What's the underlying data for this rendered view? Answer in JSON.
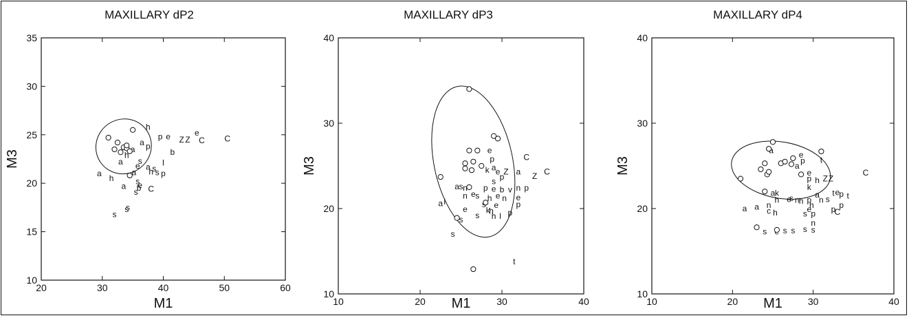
{
  "chart_data": [
    {
      "type": "scatter",
      "title": "MAXILLARY dP2",
      "xlabel": "M1",
      "ylabel": "M3",
      "xlim": [
        20,
        60
      ],
      "ylim": [
        10,
        35
      ],
      "xticks": [
        20,
        30,
        40,
        50,
        60
      ],
      "yticks": [
        10,
        15,
        20,
        25,
        30,
        35
      ],
      "grid": false,
      "circle_points": [
        [
          31,
          24.7
        ],
        [
          32,
          23.5
        ],
        [
          32.5,
          24.2
        ],
        [
          33,
          23.2
        ],
        [
          33.5,
          23.7
        ],
        [
          34,
          23.6
        ],
        [
          34.5,
          23.3
        ],
        [
          35,
          25.5
        ],
        [
          34.5,
          20.8
        ],
        [
          34,
          23.9
        ]
      ],
      "ellipse": {
        "cx": 33.5,
        "cy": 23.8,
        "rx": 4.6,
        "ry": 2.8,
        "rotation": 35
      },
      "letter_points": [
        {
          "label": "h",
          "x": 37.5,
          "y": 25.8
        },
        {
          "label": "a",
          "x": 36.5,
          "y": 24.2
        },
        {
          "label": "a",
          "x": 35,
          "y": 23.5
        },
        {
          "label": "p",
          "x": 37.5,
          "y": 23.8
        },
        {
          "label": "h",
          "x": 34,
          "y": 22.9
        },
        {
          "label": "a",
          "x": 33,
          "y": 22.2
        },
        {
          "label": "s",
          "x": 36.2,
          "y": 22.3
        },
        {
          "label": "e",
          "x": 35.8,
          "y": 21.8
        },
        {
          "label": "a",
          "x": 37.5,
          "y": 21.7
        },
        {
          "label": "h",
          "x": 38,
          "y": 21.2
        },
        {
          "label": "s",
          "x": 38.5,
          "y": 21.5
        },
        {
          "label": "s",
          "x": 39,
          "y": 21.1
        },
        {
          "label": "p",
          "x": 40,
          "y": 21.0
        },
        {
          "label": "l",
          "x": 40,
          "y": 22.1
        },
        {
          "label": "a",
          "x": 29.5,
          "y": 21.0
        },
        {
          "label": "h",
          "x": 31.5,
          "y": 20.5
        },
        {
          "label": "a",
          "x": 35.2,
          "y": 21.1
        },
        {
          "label": "s",
          "x": 35.8,
          "y": 20.2
        },
        {
          "label": "a",
          "x": 33.5,
          "y": 19.7
        },
        {
          "label": "e",
          "x": 36.2,
          "y": 19.8
        },
        {
          "label": "b",
          "x": 36,
          "y": 19.5
        },
        {
          "label": "C",
          "x": 38,
          "y": 19.4
        },
        {
          "label": "s",
          "x": 35.5,
          "y": 19.1
        },
        {
          "label": "p",
          "x": 39.5,
          "y": 24.8
        },
        {
          "label": "e",
          "x": 40.8,
          "y": 24.8
        },
        {
          "label": "b",
          "x": 41.5,
          "y": 23.2
        },
        {
          "label": "Z",
          "x": 43,
          "y": 24.5
        },
        {
          "label": "Z",
          "x": 44,
          "y": 24.5
        },
        {
          "label": "e",
          "x": 45.5,
          "y": 25.2
        },
        {
          "label": "C",
          "x": 46.3,
          "y": 24.4
        },
        {
          "label": "C",
          "x": 50.5,
          "y": 24.6
        },
        {
          "label": "s",
          "x": 32,
          "y": 16.8
        },
        {
          "label": "s",
          "x": 34,
          "y": 17.3
        },
        {
          "label": "s",
          "x": 34.2,
          "y": 17.5
        }
      ]
    },
    {
      "type": "scatter",
      "title": "MAXILLARY dP3",
      "xlabel": "M1",
      "ylabel": "M3",
      "xlim": [
        10,
        40
      ],
      "ylim": [
        10,
        40
      ],
      "xticks": [
        10,
        20,
        30,
        40
      ],
      "yticks": [
        10,
        20,
        30,
        40
      ],
      "grid": false,
      "circle_points": [
        [
          26,
          34
        ],
        [
          29,
          28.5
        ],
        [
          29.5,
          28.2
        ],
        [
          26,
          26.8
        ],
        [
          27,
          26.8
        ],
        [
          25.5,
          25.3
        ],
        [
          26.5,
          25.5
        ],
        [
          25.5,
          24.7
        ],
        [
          26.3,
          24.5
        ],
        [
          22.5,
          23.7
        ],
        [
          27.5,
          25
        ],
        [
          26,
          22.5
        ],
        [
          28,
          20.7
        ],
        [
          24.5,
          18.9
        ],
        [
          26.5,
          12.9
        ]
      ],
      "ellipse": {
        "cx": 26.5,
        "cy": 25.5,
        "rx": 4.8,
        "ry": 9.0,
        "rotation": 12
      },
      "letter_points": [
        {
          "label": "e",
          "x": 28.5,
          "y": 26.8
        },
        {
          "label": "p",
          "x": 28.8,
          "y": 25.8
        },
        {
          "label": "k",
          "x": 28.2,
          "y": 24.5
        },
        {
          "label": "a",
          "x": 29,
          "y": 24.8
        },
        {
          "label": "e",
          "x": 29.5,
          "y": 24.3
        },
        {
          "label": "Z",
          "x": 30.5,
          "y": 24.3
        },
        {
          "label": "s",
          "x": 29,
          "y": 23.2
        },
        {
          "label": "p",
          "x": 30,
          "y": 23.7
        },
        {
          "label": "a",
          "x": 32,
          "y": 24.3
        },
        {
          "label": "C",
          "x": 33,
          "y": 26
        },
        {
          "label": "Z",
          "x": 34,
          "y": 23.8
        },
        {
          "label": "C",
          "x": 35.5,
          "y": 24.3
        },
        {
          "label": "a",
          "x": 24.5,
          "y": 22.6
        },
        {
          "label": "s",
          "x": 25,
          "y": 22.6
        },
        {
          "label": "n",
          "x": 25.5,
          "y": 22.4
        },
        {
          "label": "p",
          "x": 28,
          "y": 22.4
        },
        {
          "label": "e",
          "x": 29,
          "y": 22.3
        },
        {
          "label": "b",
          "x": 30,
          "y": 22.2
        },
        {
          "label": "v",
          "x": 31,
          "y": 22.2
        },
        {
          "label": "n",
          "x": 32,
          "y": 22.4
        },
        {
          "label": "p",
          "x": 33,
          "y": 22.4
        },
        {
          "label": "a",
          "x": 22.5,
          "y": 20.6
        },
        {
          "label": "l",
          "x": 23,
          "y": 20.8
        },
        {
          "label": "n",
          "x": 25.5,
          "y": 21.5
        },
        {
          "label": "e",
          "x": 26.5,
          "y": 21.7
        },
        {
          "label": "s",
          "x": 27,
          "y": 21.5
        },
        {
          "label": "h",
          "x": 28.5,
          "y": 21.2
        },
        {
          "label": "e",
          "x": 29.5,
          "y": 21.5
        },
        {
          "label": "e",
          "x": 32,
          "y": 21.3
        },
        {
          "label": "n",
          "x": 30.3,
          "y": 21.2
        },
        {
          "label": "s",
          "x": 27.8,
          "y": 20.5
        },
        {
          "label": "e",
          "x": 29.3,
          "y": 20.4
        },
        {
          "label": "p",
          "x": 32,
          "y": 20.5
        },
        {
          "label": "k",
          "x": 28.3,
          "y": 19.8
        },
        {
          "label": "h",
          "x": 28.7,
          "y": 19.7
        },
        {
          "label": "e",
          "x": 25.5,
          "y": 19.9
        },
        {
          "label": "s",
          "x": 27,
          "y": 19.2
        },
        {
          "label": "h",
          "x": 29,
          "y": 19.1
        },
        {
          "label": "l",
          "x": 29.8,
          "y": 19.1
        },
        {
          "label": "p",
          "x": 31,
          "y": 19.5
        },
        {
          "label": "s",
          "x": 25,
          "y": 18.7
        },
        {
          "label": "s",
          "x": 24,
          "y": 17
        },
        {
          "label": "t",
          "x": 31.5,
          "y": 13.8
        }
      ]
    },
    {
      "type": "scatter",
      "title": "MAXILLARY dP4",
      "xlabel": "M1",
      "ylabel": "M3",
      "xlim": [
        10,
        40
      ],
      "ylim": [
        10,
        40
      ],
      "xticks": [
        10,
        20,
        30,
        40
      ],
      "yticks": [
        10,
        20,
        30,
        40
      ],
      "grid": false,
      "circle_points": [
        [
          25,
          27.8
        ],
        [
          24.5,
          27
        ],
        [
          24,
          25.3
        ],
        [
          26,
          25.3
        ],
        [
          27.5,
          25.9
        ],
        [
          26.5,
          25.5
        ],
        [
          27.3,
          25.2
        ],
        [
          31,
          26.7
        ],
        [
          21,
          23.5
        ],
        [
          23.5,
          24.6
        ],
        [
          24.3,
          24
        ],
        [
          24.5,
          24.3
        ],
        [
          28.5,
          24
        ],
        [
          24,
          22
        ],
        [
          23,
          17.8
        ],
        [
          25.5,
          17.5
        ]
      ],
      "ellipse": {
        "cx": 26,
        "cy": 24.5,
        "rx": 6.2,
        "ry": 3.3,
        "rotation": -10
      },
      "letter_points": [
        {
          "label": "a",
          "x": 24.8,
          "y": 26.8
        },
        {
          "label": "e",
          "x": 28.5,
          "y": 26.3
        },
        {
          "label": "p",
          "x": 28.7,
          "y": 25.6
        },
        {
          "label": "a",
          "x": 28,
          "y": 25
        },
        {
          "label": "t",
          "x": 31,
          "y": 25.7
        },
        {
          "label": "e",
          "x": 29.5,
          "y": 24.2
        },
        {
          "label": "p",
          "x": 29.5,
          "y": 23.5
        },
        {
          "label": "h",
          "x": 30.5,
          "y": 23.3
        },
        {
          "label": "Z",
          "x": 31.5,
          "y": 23.5
        },
        {
          "label": "Z",
          "x": 32.2,
          "y": 23.5
        },
        {
          "label": "k",
          "x": 29.5,
          "y": 22.5
        },
        {
          "label": "C",
          "x": 36.5,
          "y": 24.2
        },
        {
          "label": "a",
          "x": 25,
          "y": 21.8
        },
        {
          "label": "k",
          "x": 25.5,
          "y": 21.8
        },
        {
          "label": "h",
          "x": 25.5,
          "y": 21
        },
        {
          "label": "e",
          "x": 27,
          "y": 21.1
        },
        {
          "label": "s",
          "x": 27.3,
          "y": 21.2
        },
        {
          "label": "n",
          "x": 28,
          "y": 21
        },
        {
          "label": "h",
          "x": 28.5,
          "y": 20.9
        },
        {
          "label": "p",
          "x": 29.5,
          "y": 21
        },
        {
          "label": "a",
          "x": 30.5,
          "y": 21.6
        },
        {
          "label": "n",
          "x": 31,
          "y": 21
        },
        {
          "label": "s",
          "x": 31.8,
          "y": 21.1
        },
        {
          "label": "t",
          "x": 32.5,
          "y": 21.8
        },
        {
          "label": "e",
          "x": 33,
          "y": 21.9
        },
        {
          "label": "p",
          "x": 33.5,
          "y": 21.7
        },
        {
          "label": "t",
          "x": 34.3,
          "y": 21.5
        },
        {
          "label": "p",
          "x": 33.5,
          "y": 20.4
        },
        {
          "label": "n",
          "x": 24.5,
          "y": 20.4
        },
        {
          "label": "c",
          "x": 24.5,
          "y": 19.7
        },
        {
          "label": "h",
          "x": 25.3,
          "y": 19.5
        },
        {
          "label": "e",
          "x": 29.5,
          "y": 19.9
        },
        {
          "label": "h",
          "x": 29.8,
          "y": 20.4
        },
        {
          "label": "p",
          "x": 32.5,
          "y": 19.9
        },
        {
          "label": "C",
          "x": 33,
          "y": 19.6
        },
        {
          "label": "a",
          "x": 21.5,
          "y": 20
        },
        {
          "label": "a",
          "x": 23,
          "y": 20.2
        },
        {
          "label": "s",
          "x": 29,
          "y": 19.4
        },
        {
          "label": "p",
          "x": 30,
          "y": 19.4
        },
        {
          "label": "n",
          "x": 30,
          "y": 18.3
        },
        {
          "label": "s",
          "x": 24,
          "y": 17.3
        },
        {
          "label": "e",
          "x": 25.5,
          "y": 17.3
        },
        {
          "label": "s",
          "x": 26.5,
          "y": 17.4
        },
        {
          "label": "s",
          "x": 27.5,
          "y": 17.4
        },
        {
          "label": "s",
          "x": 29,
          "y": 17.6
        },
        {
          "label": "s",
          "x": 30,
          "y": 17.5
        }
      ]
    }
  ]
}
